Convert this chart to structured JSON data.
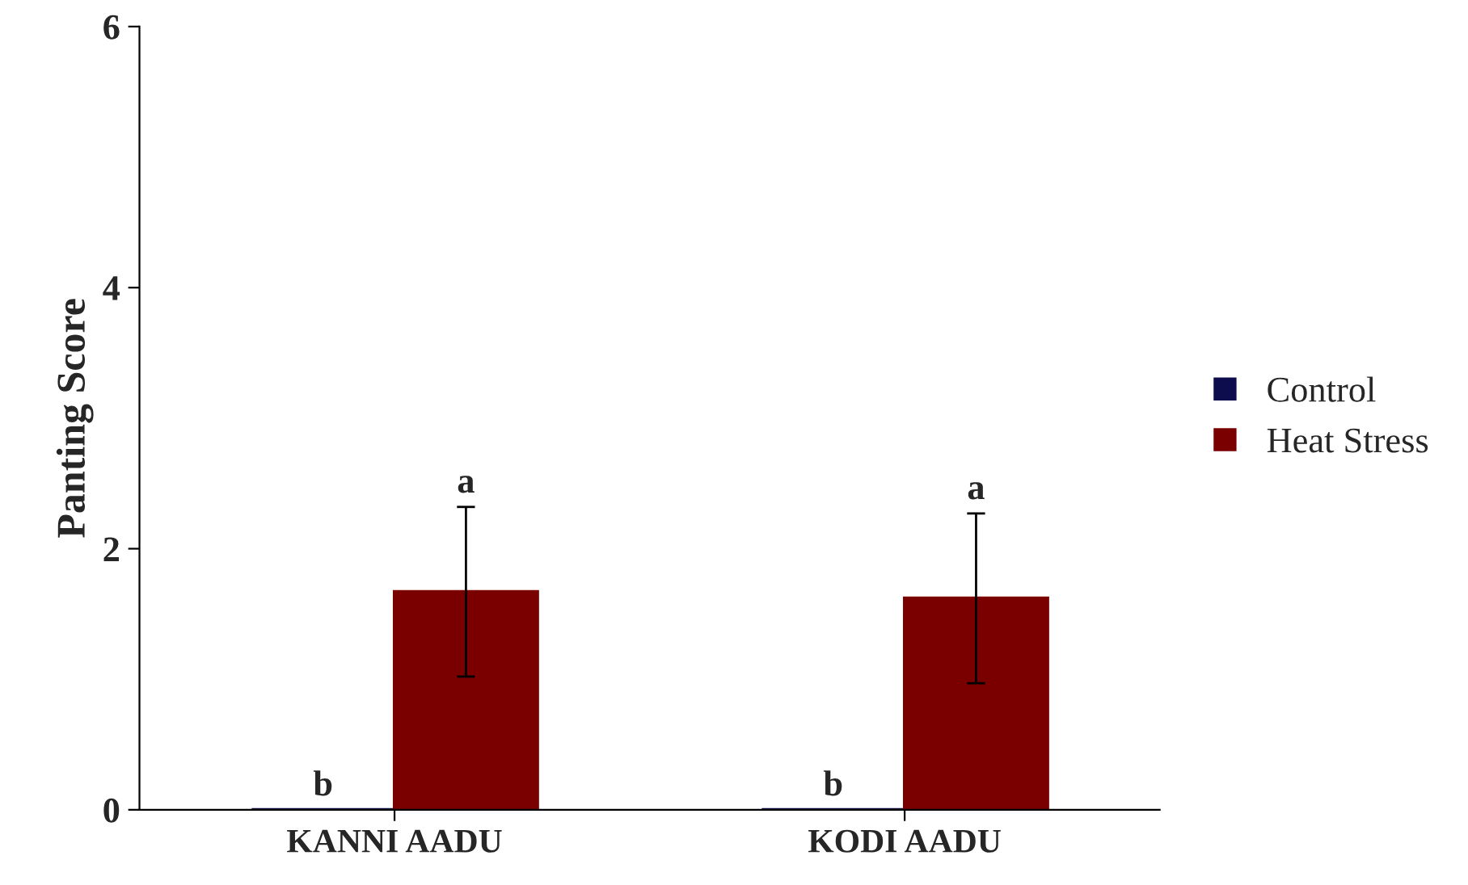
{
  "chart_data": {
    "type": "bar",
    "ylabel": "Panting Score",
    "categories": [
      "KANNI AADU",
      "KODI AADU"
    ],
    "series": [
      {
        "name": "Control",
        "color": "#0d0d4d",
        "values": [
          0,
          0
        ],
        "value_labels": [
          "b",
          "b"
        ]
      },
      {
        "name": "Heat Stress",
        "color": "#7a0000",
        "values": [
          1.67,
          1.62
        ],
        "errors": [
          0.65,
          0.65
        ],
        "value_labels": [
          "a",
          "a"
        ]
      }
    ],
    "ylim": [
      0,
      6
    ],
    "yticks": [
      0,
      2,
      4,
      6
    ],
    "grid": false,
    "legend": "right"
  }
}
